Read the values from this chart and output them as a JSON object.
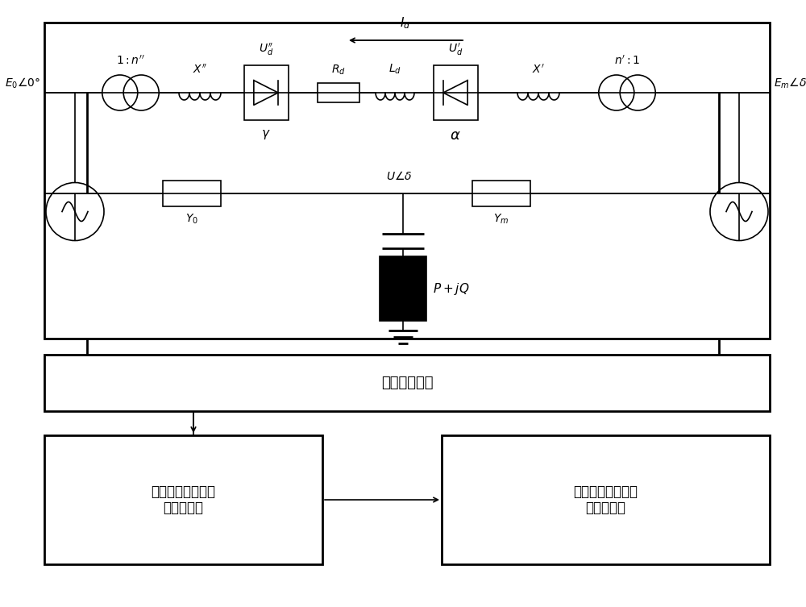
{
  "bg_color": "#ffffff",
  "line_color": "#000000",
  "lw": 1.2,
  "lw2": 2.0,
  "fig_width": 10.0,
  "fig_height": 7.53,
  "labels": {
    "E0": "$E_0\\angle0°$",
    "Em": "$E_m\\angle\\delta_m$",
    "n_left": "$1:n''$",
    "X_left": "$X''$",
    "Ud_left": "$U_d''$",
    "gamma": "$\\gamma$",
    "Rd": "$R_d$",
    "Ld": "$L_d$",
    "Id": "$I_d$",
    "Ud_right": "$U_d'$",
    "alpha": "$\\alpha$",
    "X_right": "$X'$",
    "n_right": "$n':1$",
    "Y0": "$Y_0$",
    "Ym": "$Y_m$",
    "Udelta": "$U\\angle\\delta$",
    "PjQ": "$P+jQ$",
    "signal": "信号采集模块",
    "lyapunov": "最大李雅普诺夯指\n数计算模块",
    "chaos": "交直流输电系统混\n沌报警模块"
  }
}
